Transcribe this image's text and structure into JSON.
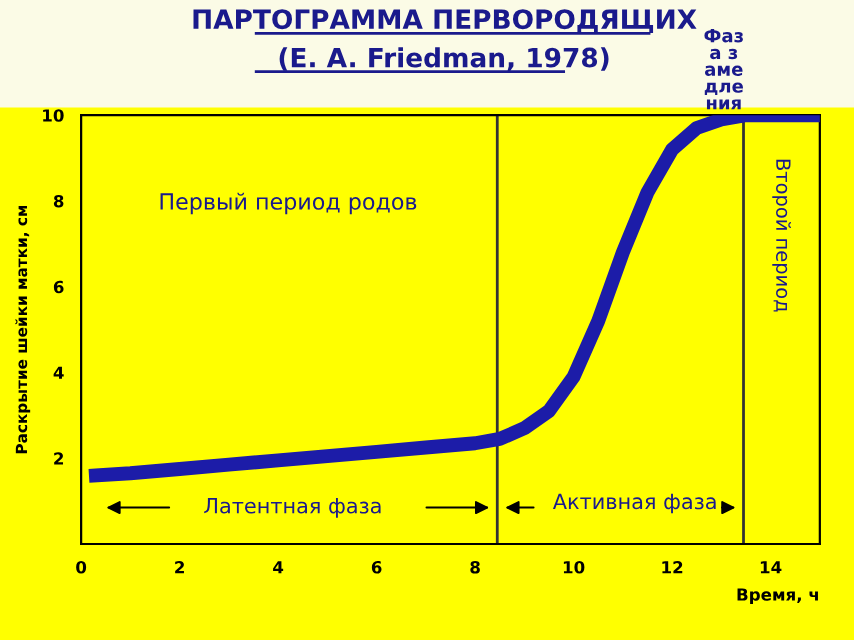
{
  "chart_data": {
    "type": "line",
    "title": "ПАРТОГРАММА ПЕРВОРОДЯЩИХ",
    "subtitle": "(E. A. Friedman, 1978)",
    "xlabel": "Время, ч",
    "ylabel": "Раскрытие шейки матки, см",
    "x": [
      0.3,
      1,
      2,
      3,
      4,
      5,
      6,
      7,
      8,
      8.5,
      9,
      9.5,
      10,
      10.5,
      11,
      11.5,
      12,
      12.5,
      13,
      13.5,
      14,
      15
    ],
    "series": [
      {
        "color": "#1c1ca8",
        "values": [
          1.6,
          1.65,
          1.75,
          1.85,
          1.95,
          2.05,
          2.15,
          2.25,
          2.35,
          2.45,
          2.7,
          3.1,
          3.9,
          5.2,
          6.8,
          8.2,
          9.2,
          9.7,
          9.9,
          10.0,
          10.0,
          10.0
        ]
      }
    ],
    "xlim": [
      0,
      15
    ],
    "ylim": [
      0,
      10
    ],
    "xticks": [
      0,
      2,
      4,
      6,
      8,
      10,
      12,
      14
    ],
    "yticks": [
      2,
      4,
      6,
      8,
      10
    ],
    "grid": false,
    "marker": "none",
    "line_style": "solid",
    "ref_lines": [
      {
        "axis": "x",
        "value": 8.45,
        "color": "#333333"
      },
      {
        "axis": "x",
        "value": 13.45,
        "color": "#333333"
      }
    ],
    "annotations": [
      "Первый период родов",
      "Латентная фаза",
      "Активная фаза",
      "Фаза замедления",
      "Второй период"
    ]
  }
}
